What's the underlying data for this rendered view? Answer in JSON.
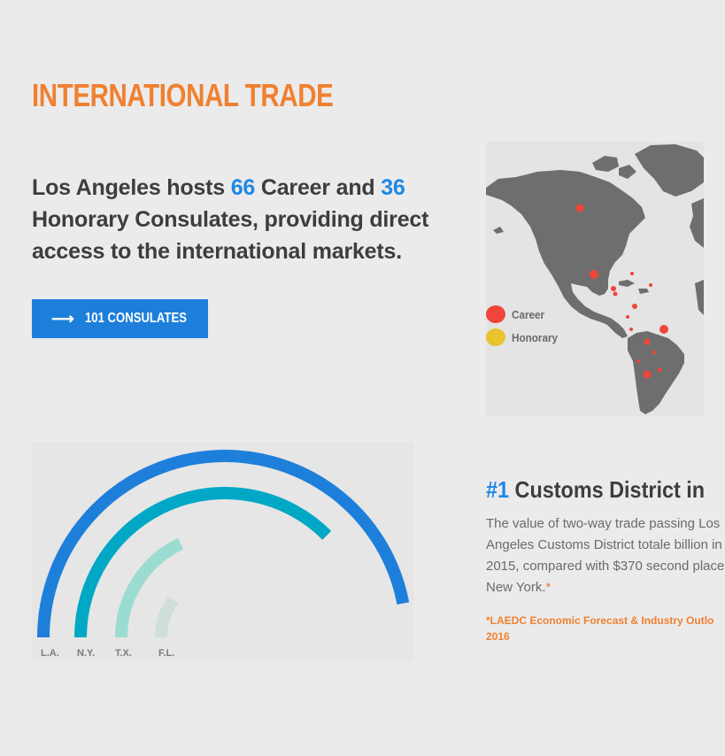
{
  "header": {
    "title": "INTERNATIONAL TRADE"
  },
  "intro": {
    "prefix": "Los Angeles hosts ",
    "career_count": "66",
    "middle": " Career and ",
    "honorary_count": "36",
    "suffix": " Honorary Consulates, providing direct access to the international markets."
  },
  "consulates_button": {
    "label": "101 CONSULATES",
    "icon": "arrow-right-icon"
  },
  "map": {
    "legend": [
      {
        "label": "Career",
        "color": "#f0453a"
      },
      {
        "label": "Honorary",
        "color": "#e8c52e"
      }
    ]
  },
  "chart_data": {
    "type": "radial-bar",
    "categories": [
      "L.A.",
      "N.Y.",
      "T.X.",
      "F.L."
    ],
    "values": [
      0.94,
      0.75,
      0.36,
      0.2
    ],
    "colors": [
      "#1e7fdb",
      "#00a8c6",
      "#9bdcd2",
      "#cfdfd8"
    ]
  },
  "customs": {
    "rank": "#1",
    "title": "Customs District in",
    "body": "The value of two-way trade passing Los Angeles Customs District totale billion in 2015, compared with $370 second place New York.",
    "asterisk": "*",
    "source": "*LAEDC Economic Forecast & Industry Outlo 2016"
  },
  "colors": {
    "accent_orange": "#f08030",
    "accent_blue": "#1e88e5",
    "text_dark": "#3d3d3d"
  }
}
